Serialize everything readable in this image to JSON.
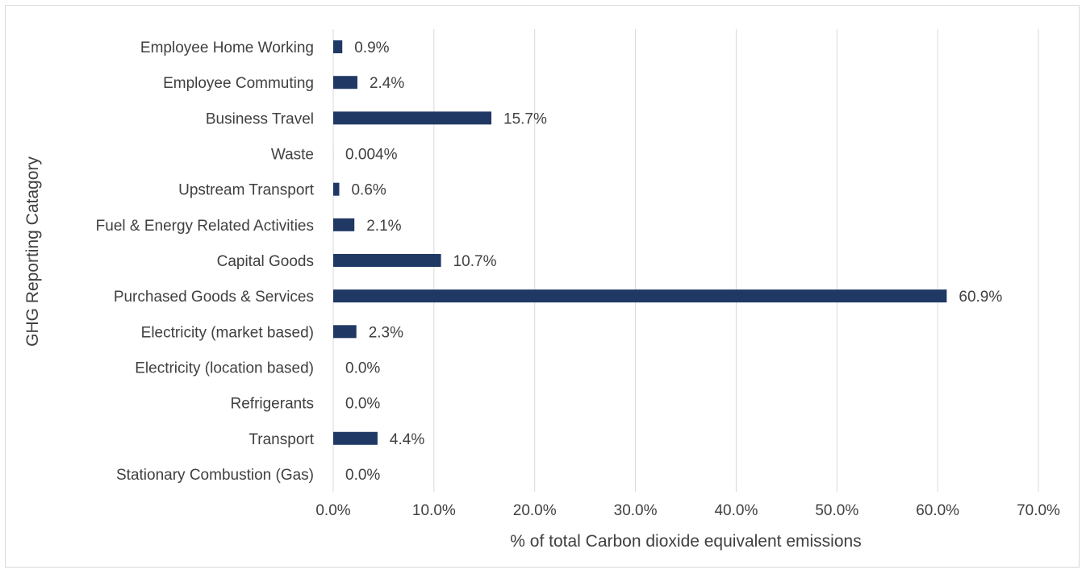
{
  "chart_data": {
    "type": "bar",
    "orientation": "horizontal",
    "title": "",
    "xlabel": "% of total Carbon dioxide equivalent emissions",
    "ylabel": "GHG Reporting Catagory",
    "categories": [
      "Stationary Combustion (Gas)",
      "Transport",
      "Refrigerants",
      "Electricity (location based)",
      "Electricity (market based)",
      "Purchased Goods & Services",
      "Capital Goods",
      "Fuel & Energy Related Activities",
      "Upstream Transport",
      "Waste",
      "Business Travel",
      "Employee Commuting",
      "Employee Home Working"
    ],
    "values": [
      0.0,
      4.4,
      0.0,
      0.0,
      2.3,
      60.9,
      10.7,
      2.1,
      0.6,
      0.004,
      15.7,
      2.4,
      0.9
    ],
    "data_labels": [
      "0.0%",
      "4.4%",
      "0.0%",
      "0.0%",
      "2.3%",
      "60.9%",
      "10.7%",
      "2.1%",
      "0.6%",
      "0.004%",
      "15.7%",
      "2.4%",
      "0.9%"
    ],
    "xlim": [
      0,
      70
    ],
    "xticks": [
      0,
      10,
      20,
      30,
      40,
      50,
      60,
      70
    ],
    "xtick_labels": [
      "0.0%",
      "10.0%",
      "20.0%",
      "30.0%",
      "40.0%",
      "50.0%",
      "60.0%",
      "70.0%"
    ],
    "grid": "vertical",
    "legend": "none",
    "colors": {
      "bar": "#203864",
      "grid": "#d9d9d9",
      "text": "#404040"
    }
  }
}
